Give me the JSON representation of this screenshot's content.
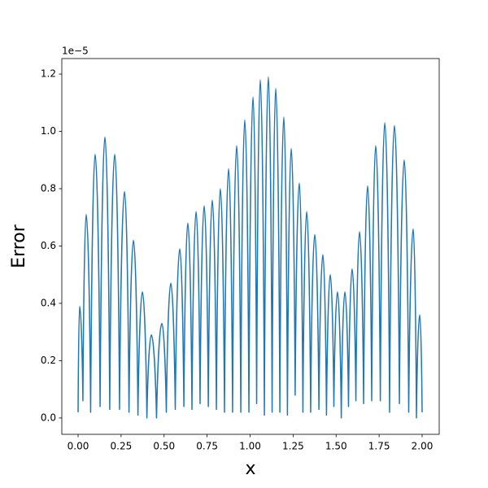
{
  "chart_data": {
    "type": "line",
    "x_label": "x",
    "y_label": "Error",
    "y_offset_label": "1e−5",
    "xlim": [
      -0.0946,
      2.0993
    ],
    "ylim": [
      -0.057,
      1.254
    ],
    "xticks": [
      {
        "value": 0,
        "label": "0.00"
      },
      {
        "value": 0.25,
        "label": "0.25"
      },
      {
        "value": 0.5,
        "label": "0.50"
      },
      {
        "value": 0.75,
        "label": "0.75"
      },
      {
        "value": 1,
        "label": "1.00"
      },
      {
        "value": 1.25,
        "label": "1.25"
      },
      {
        "value": 1.5,
        "label": "1.50"
      },
      {
        "value": 1.75,
        "label": "1.75"
      },
      {
        "value": 2,
        "label": "2.00"
      }
    ],
    "yticks": [
      {
        "value": 0,
        "label": "0.0"
      },
      0.2,
      0.4,
      0.6,
      0.8,
      {
        "value": 1,
        "label": "1.0"
      },
      1.2
    ],
    "x": [
      0,
      0.009,
      0.028,
      0.047,
      0.073,
      0.099,
      0.128,
      0.156,
      0.184,
      0.213,
      0.241,
      0.27,
      0.296,
      0.322,
      0.348,
      0.374,
      0.4,
      0.426,
      0.456,
      0.487,
      0.513,
      0.539,
      0.565,
      0.591,
      0.615,
      0.638,
      0.662,
      0.686,
      0.709,
      0.733,
      0.757,
      0.78,
      0.804,
      0.827,
      0.851,
      0.875,
      0.898,
      0.922,
      0.946,
      0.969,
      0.993,
      1.017,
      1.038,
      1.059,
      1.083,
      1.106,
      1.128,
      1.149,
      1.173,
      1.196,
      1.217,
      1.239,
      1.262,
      1.286,
      1.307,
      1.329,
      1.352,
      1.376,
      1.4,
      1.423,
      1.444,
      1.466,
      1.487,
      1.508,
      1.53,
      1.551,
      1.572,
      1.593,
      1.615,
      1.636,
      1.66,
      1.683,
      1.707,
      1.73,
      1.757,
      1.783,
      1.811,
      1.839,
      1.868,
      1.896,
      1.922,
      1.948,
      1.967,
      1.986,
      2.0
    ],
    "series": [
      {
        "color": "#1f77b4",
        "values": [
          0.02,
          0.39,
          0.06,
          0.71,
          0.02,
          0.92,
          0.04,
          0.98,
          0.03,
          0.92,
          0.03,
          0.79,
          0.02,
          0.62,
          0.01,
          0.44,
          0.0,
          0.29,
          0.0,
          0.33,
          0.02,
          0.47,
          0.03,
          0.59,
          0.04,
          0.68,
          0.03,
          0.72,
          0.05,
          0.74,
          0.04,
          0.76,
          0.03,
          0.8,
          0.02,
          0.87,
          0.02,
          0.95,
          0.02,
          1.04,
          0.02,
          1.12,
          0.05,
          1.18,
          0.01,
          1.19,
          0.02,
          1.15,
          0.02,
          1.05,
          0.01,
          0.94,
          0.08,
          0.82,
          0.02,
          0.72,
          0.02,
          0.64,
          0.03,
          0.57,
          0.01,
          0.5,
          0.04,
          0.44,
          0.0,
          0.44,
          0.04,
          0.52,
          0.06,
          0.65,
          0.05,
          0.81,
          0.06,
          0.95,
          0.06,
          1.03,
          0.02,
          1.02,
          0.05,
          0.9,
          0.02,
          0.66,
          0.0,
          0.36,
          0.02
        ]
      }
    ]
  }
}
